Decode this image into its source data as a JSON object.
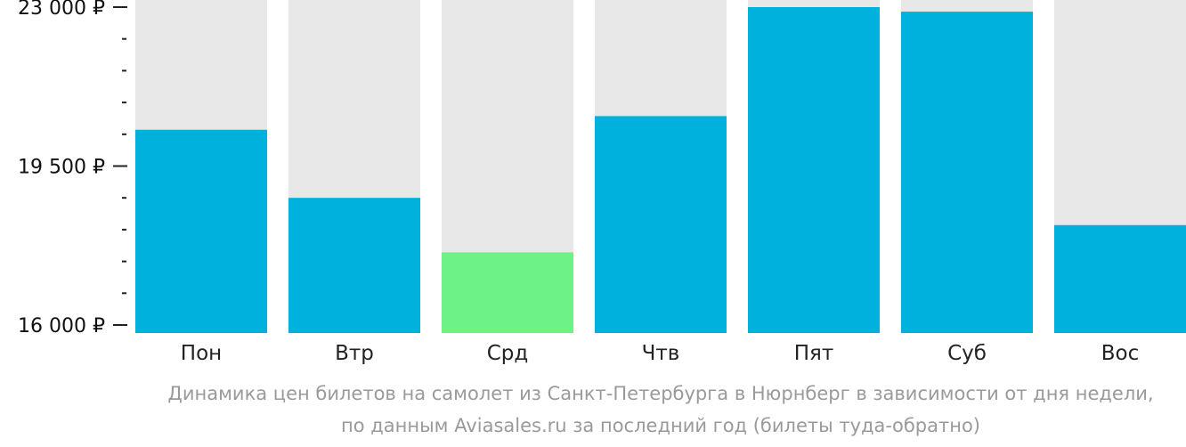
{
  "chart_data": {
    "type": "bar",
    "categories": [
      "Пон",
      "Втр",
      "Срд",
      "Чтв",
      "Пят",
      "Суб",
      "Вос"
    ],
    "values": [
      20300,
      18800,
      17600,
      20600,
      23000,
      22900,
      18200
    ],
    "ylim": [
      16000,
      23000
    ],
    "y_ticks": [
      {
        "value": 23000,
        "label": "23 000 ₽"
      },
      {
        "value": 19500,
        "label": "19 500 ₽"
      },
      {
        "value": 16000,
        "label": "16 000 ₽"
      }
    ],
    "y_minor_step": 700,
    "highlight_index": 2,
    "colors": {
      "bar": "#00b0dd",
      "highlight": "#6cf285",
      "background_bar": "#e8e8e8",
      "axis": "#222222"
    },
    "caption": [
      "Динамика цен билетов на самолет из Санкт-Петербурга в Нюрнберг в зависимости от дня недели,",
      "по данным Aviasales.ru за последний год (билеты туда-обратно)"
    ]
  }
}
